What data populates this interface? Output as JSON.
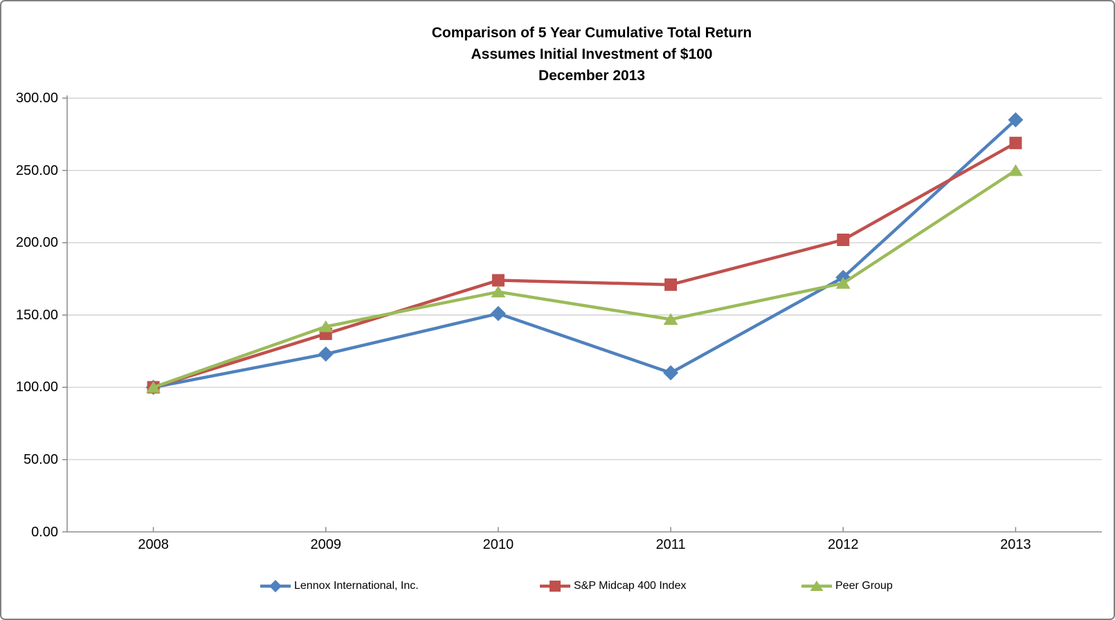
{
  "frame": {
    "background": "#FFFFFF",
    "border_color": "#808080"
  },
  "title": {
    "lines": [
      "Comparison of 5 Year Cumulative Total Return",
      "Assumes Initial Investment of $100",
      "December 2013"
    ]
  },
  "chart_data": {
    "type": "line",
    "title": "Comparison of 5 Year Cumulative Total Return",
    "subtitle": "Assumes Initial Investment of $100",
    "subtitle2": "December 2013",
    "categories": [
      "2008",
      "2009",
      "2010",
      "2011",
      "2012",
      "2013"
    ],
    "series": [
      {
        "name": "Lennox International, Inc.",
        "marker": "diamond",
        "color": "#4F81BD",
        "values": [
          100,
          123,
          151,
          110,
          176,
          285
        ]
      },
      {
        "name": "S&P Midcap 400 Index",
        "marker": "square",
        "color": "#C0504D",
        "values": [
          100,
          137,
          174,
          171,
          202,
          269
        ]
      },
      {
        "name": "Peer Group",
        "marker": "triangle",
        "color": "#9BBB59",
        "values": [
          100,
          142,
          166,
          147,
          172,
          250
        ]
      }
    ],
    "y_axis": {
      "min": 0,
      "max": 300,
      "step": 50,
      "tick_labels": [
        "0.00",
        "50.00",
        "100.00",
        "150.00",
        "200.00",
        "250.00",
        "300.00"
      ]
    },
    "x_axis": {
      "tick_labels": [
        "2008",
        "2009",
        "2010",
        "2011",
        "2012",
        "2013"
      ]
    },
    "grid": true,
    "legend_position": "bottom",
    "colors": {
      "gridline": "#C9C9C9",
      "axis": "#8A8A8A",
      "text": "#000000"
    }
  },
  "layout_note": ""
}
